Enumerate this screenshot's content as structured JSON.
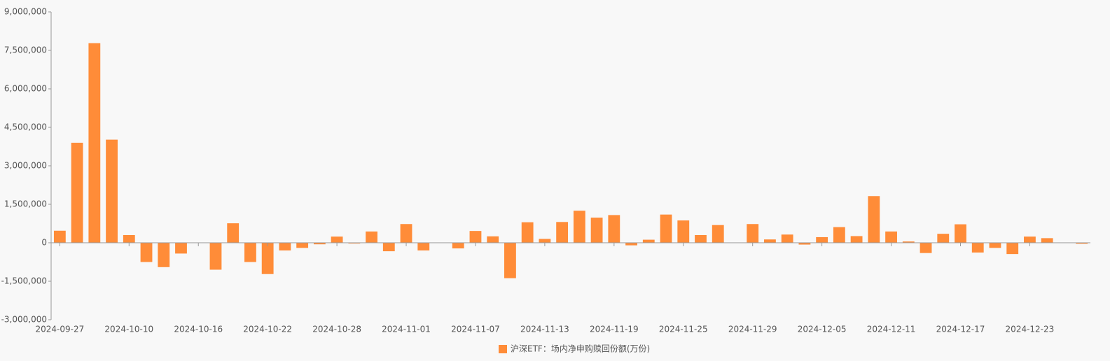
{
  "chart_data": {
    "type": "bar",
    "categories": [
      "2024-09-27",
      null,
      null,
      null,
      "2024-10-10",
      null,
      null,
      null,
      "2024-10-16",
      null,
      null,
      null,
      "2024-10-22",
      null,
      null,
      null,
      "2024-10-28",
      null,
      null,
      null,
      "2024-11-01",
      null,
      null,
      null,
      "2024-11-07",
      null,
      null,
      null,
      "2024-11-13",
      null,
      null,
      null,
      "2024-11-19",
      null,
      null,
      null,
      "2024-11-25",
      null,
      null,
      null,
      "2024-11-29",
      null,
      null,
      null,
      "2024-12-05",
      null,
      null,
      null,
      "2024-12-11",
      null,
      null,
      null,
      "2024-12-17",
      null,
      null,
      null,
      "2024-12-23",
      null,
      null,
      null
    ],
    "series": [
      {
        "name": "沪深ETF：场内净申购赎回份额(万份)",
        "color": "#ff8c38",
        "values": [
          470000,
          3900000,
          7780000,
          4020000,
          300000,
          -750000,
          -950000,
          -420000,
          0,
          -1050000,
          760000,
          -750000,
          -1220000,
          -300000,
          -200000,
          -60000,
          240000,
          -30000,
          440000,
          -330000,
          730000,
          -300000,
          0,
          -220000,
          460000,
          250000,
          -1380000,
          800000,
          150000,
          810000,
          1250000,
          980000,
          1080000,
          -100000,
          120000,
          1100000,
          870000,
          300000,
          690000,
          0,
          730000,
          130000,
          320000,
          -70000,
          220000,
          610000,
          260000,
          1820000,
          440000,
          50000,
          -400000,
          350000,
          720000,
          -380000,
          -200000,
          -440000,
          240000,
          180000,
          0,
          -40000
        ]
      }
    ],
    "ylim": [
      -3000000,
      9000000
    ],
    "yticks": [
      {
        "value": -3000000,
        "label": "-3,000,000"
      },
      {
        "value": -1500000,
        "label": "-1,500,000"
      },
      0,
      {
        "value": 1500000,
        "label": "1,500,000"
      },
      {
        "value": 3000000,
        "label": "3,000,000"
      },
      {
        "value": 4500000,
        "label": "4,500,000"
      },
      {
        "value": 6000000,
        "label": "6,000,000"
      },
      {
        "value": 7500000,
        "label": "7,500,000"
      },
      {
        "value": 9000000,
        "label": "9,000,000"
      }
    ],
    "legend": "bottom"
  }
}
